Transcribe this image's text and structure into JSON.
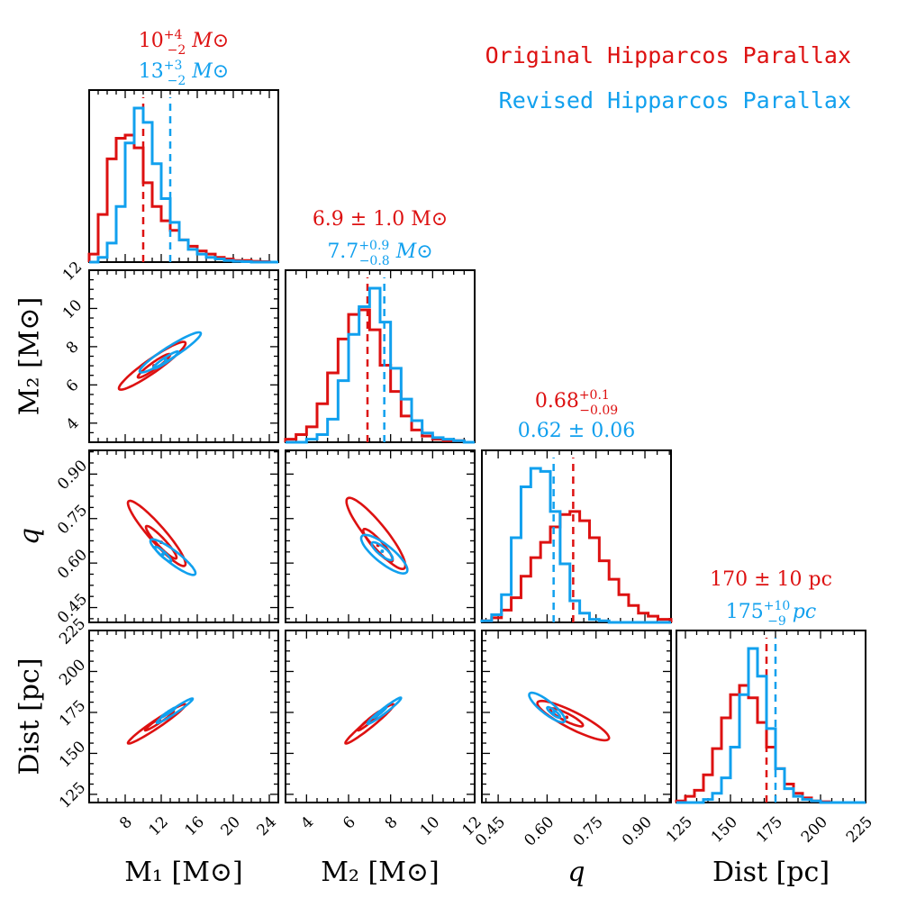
{
  "colors": {
    "original": "#dd1111",
    "revised": "#11a0ee",
    "axis": "#000000"
  },
  "legend": {
    "original": "Original Hipparcos Parallax",
    "revised": "Revised Hipparcos Parallax"
  },
  "annotations": {
    "m1_orig": {
      "base": "10",
      "sup": "+4",
      "sub": "−2",
      "unit": "M⊙"
    },
    "m1_rev": {
      "base": "13",
      "sup": "+3",
      "sub": "−2",
      "unit": "M⊙"
    },
    "m2_orig": {
      "text": "6.9 ± 1.0 M⊙"
    },
    "m2_rev": {
      "base": "7.7",
      "sup": "+0.9",
      "sub": "−0.8",
      "unit": "M⊙"
    },
    "q_orig": {
      "base": "0.68",
      "sup": "+0.1",
      "sub": "−0.09",
      "unit": ""
    },
    "q_rev": {
      "text": "0.62 ± 0.06"
    },
    "d_orig": {
      "text": "170 ± 10 pc"
    },
    "d_rev": {
      "base": "175",
      "sup": "+10",
      "sub": "−9",
      "unit": "pc"
    }
  },
  "chart_data": {
    "type": "corner",
    "parameters": [
      {
        "key": "m1",
        "label": "M₁ [M⊙]",
        "range": [
          4,
          25
        ],
        "ticks": [
          8,
          12,
          16,
          20,
          24
        ],
        "tick_labels": [
          "8",
          "12",
          "16",
          "20",
          "24"
        ]
      },
      {
        "key": "m2",
        "label": "M₂ [M⊙]",
        "range": [
          3,
          12
        ],
        "ticks": [
          4,
          6,
          8,
          10,
          12
        ],
        "tick_labels": [
          "4",
          "6",
          "8",
          "10",
          "12"
        ]
      },
      {
        "key": "q",
        "label": "q",
        "range": [
          0.4,
          0.98
        ],
        "ticks": [
          0.45,
          0.6,
          0.75,
          0.9
        ],
        "tick_labels": [
          "0.45",
          "0.60",
          "0.75",
          "0.90"
        ]
      },
      {
        "key": "dist",
        "label": "Dist [pc]",
        "range": [
          120,
          225
        ],
        "ticks": [
          125,
          150,
          175,
          200,
          225
        ],
        "tick_labels": [
          "125",
          "150",
          "175",
          "200",
          "225"
        ]
      }
    ],
    "histograms": {
      "m1": {
        "bins": [
          4,
          5,
          6,
          7,
          8,
          9,
          10,
          11,
          12,
          13,
          14,
          15,
          16,
          17,
          18,
          19,
          20,
          21,
          22,
          23,
          24,
          25
        ],
        "original": [
          0.05,
          0.3,
          0.65,
          0.78,
          0.8,
          0.72,
          0.5,
          0.35,
          0.26,
          0.2,
          0.14,
          0.1,
          0.07,
          0.05,
          0.03,
          0.02,
          0.01,
          0.01,
          0.005,
          0.003,
          0.0
        ],
        "revised": [
          0.0,
          0.03,
          0.12,
          0.35,
          0.75,
          0.97,
          0.88,
          0.62,
          0.4,
          0.25,
          0.14,
          0.08,
          0.05,
          0.03,
          0.02,
          0.01,
          0.005,
          0.003,
          0.0,
          0.0,
          0.0
        ],
        "median_original": 10,
        "median_revised": 13
      },
      "m2": {
        "bins": [
          3,
          3.5,
          4,
          4.5,
          5,
          5.5,
          6,
          6.5,
          7,
          7.5,
          8,
          8.5,
          9,
          9.5,
          10,
          10.5,
          11,
          11.5,
          12
        ],
        "original": [
          0.02,
          0.05,
          0.1,
          0.25,
          0.45,
          0.67,
          0.83,
          0.86,
          0.73,
          0.5,
          0.33,
          0.17,
          0.08,
          0.04,
          0.02,
          0.01,
          0.01,
          0.0
        ],
        "revised": [
          0.0,
          0.0,
          0.02,
          0.05,
          0.15,
          0.4,
          0.7,
          0.88,
          1.0,
          0.78,
          0.48,
          0.28,
          0.14,
          0.06,
          0.03,
          0.02,
          0.01,
          0.0
        ],
        "median_original": 6.9,
        "median_revised": 7.7
      },
      "q": {
        "bins": [
          0.4,
          0.43,
          0.46,
          0.49,
          0.52,
          0.55,
          0.58,
          0.61,
          0.64,
          0.67,
          0.7,
          0.73,
          0.76,
          0.79,
          0.82,
          0.85,
          0.88,
          0.91,
          0.94,
          0.98
        ],
        "original": [
          0.01,
          0.03,
          0.08,
          0.16,
          0.3,
          0.42,
          0.52,
          0.62,
          0.7,
          0.72,
          0.66,
          0.55,
          0.4,
          0.28,
          0.18,
          0.11,
          0.06,
          0.04,
          0.02
        ],
        "revised": [
          0.01,
          0.05,
          0.18,
          0.55,
          0.88,
          1.0,
          0.98,
          0.72,
          0.38,
          0.14,
          0.06,
          0.02,
          0.01,
          0.0,
          0.0,
          0.0,
          0.0,
          0.0,
          0.0
        ],
        "median_original": 0.68,
        "median_revised": 0.62
      },
      "dist": {
        "bins": [
          120,
          125,
          130,
          135,
          140,
          145,
          150,
          155,
          160,
          165,
          170,
          175,
          180,
          185,
          190,
          195,
          200,
          205,
          210,
          215,
          220,
          225
        ],
        "original": [
          0.01,
          0.04,
          0.08,
          0.18,
          0.35,
          0.55,
          0.7,
          0.76,
          0.68,
          0.52,
          0.36,
          0.22,
          0.12,
          0.06,
          0.03,
          0.01,
          0.005,
          0.0,
          0.0,
          0.0,
          0.0
        ],
        "revised": [
          0.0,
          0.0,
          0.0,
          0.02,
          0.06,
          0.16,
          0.36,
          0.7,
          1.0,
          0.82,
          0.48,
          0.22,
          0.09,
          0.04,
          0.02,
          0.01,
          0.0,
          0.0,
          0.0,
          0.0,
          0.0
        ],
        "median_original": 170,
        "median_revised": 175
      }
    },
    "contours": [
      {
        "x": "m1",
        "y": "m2",
        "original": [
          {
            "cx": 11,
            "cy": 7.0,
            "sx": 3.7,
            "sy": 1.25,
            "rho": 0.94
          },
          {
            "cx": 11.2,
            "cy": 7.0,
            "sx": 1.8,
            "sy": 0.62,
            "rho": 0.94
          }
        ],
        "revised": [
          {
            "cx": 13,
            "cy": 7.7,
            "sx": 3.4,
            "sy": 1.05,
            "rho": 0.94
          },
          {
            "cx": 12.5,
            "cy": 7.3,
            "sx": 1.4,
            "sy": 0.45,
            "rho": 0.94
          }
        ]
      },
      {
        "x": "m1",
        "y": "q",
        "original": [
          {
            "cx": 11.5,
            "cy": 0.7,
            "sx": 3.2,
            "sy": 0.11,
            "rho": -0.93
          },
          {
            "cx": 12,
            "cy": 0.67,
            "sx": 1.7,
            "sy": 0.055,
            "rho": -0.93
          }
        ],
        "revised": [
          {
            "cx": 13.3,
            "cy": 0.62,
            "sx": 2.5,
            "sy": 0.06,
            "rho": -0.9
          },
          {
            "cx": 12.2,
            "cy": 0.63,
            "sx": 0.9,
            "sy": 0.025,
            "rho": -0.9
          }
        ]
      },
      {
        "x": "m2",
        "y": "q",
        "original": [
          {
            "cx": 7.3,
            "cy": 0.7,
            "sx": 1.4,
            "sy": 0.12,
            "rho": -0.9
          },
          {
            "cx": 7.4,
            "cy": 0.66,
            "sx": 0.7,
            "sy": 0.055,
            "rho": -0.9
          }
        ],
        "revised": [
          {
            "cx": 7.7,
            "cy": 0.63,
            "sx": 1.1,
            "sy": 0.065,
            "rho": -0.82
          },
          {
            "cx": 7.6,
            "cy": 0.64,
            "sx": 0.5,
            "sy": 0.03,
            "rho": -0.82
          }
        ]
      },
      {
        "x": "m1",
        "y": "dist",
        "original": [
          {
            "cx": 11.5,
            "cy": 168,
            "sx": 3.2,
            "sy": 12,
            "rho": 0.97
          },
          {
            "cx": 11.8,
            "cy": 170,
            "sx": 1.6,
            "sy": 6,
            "rho": 0.97
          }
        ],
        "revised": [
          {
            "cx": 13.5,
            "cy": 176,
            "sx": 2.0,
            "sy": 7.5,
            "rho": 0.97
          },
          {
            "cx": 12.8,
            "cy": 175,
            "sx": 0.8,
            "sy": 3,
            "rho": 0.97
          }
        ]
      },
      {
        "x": "m2",
        "y": "dist",
        "original": [
          {
            "cx": 7.0,
            "cy": 168,
            "sx": 1.15,
            "sy": 12,
            "rho": 0.97
          },
          {
            "cx": 7.0,
            "cy": 170,
            "sx": 0.55,
            "sy": 6,
            "rho": 0.97
          }
        ],
        "revised": [
          {
            "cx": 7.7,
            "cy": 176,
            "sx": 0.8,
            "sy": 8,
            "rho": 0.97
          },
          {
            "cx": 7.5,
            "cy": 175,
            "sx": 0.3,
            "sy": 3.2,
            "rho": 0.97
          }
        ]
      },
      {
        "x": "q",
        "y": "dist",
        "original": [
          {
            "cx": 0.68,
            "cy": 170,
            "sx": 0.11,
            "sy": 12,
            "rho": -0.88
          },
          {
            "cx": 0.66,
            "cy": 172,
            "sx": 0.05,
            "sy": 5.5,
            "rho": -0.88
          }
        ],
        "revised": [
          {
            "cx": 0.6,
            "cy": 178,
            "sx": 0.055,
            "sy": 9,
            "rho": -0.85
          },
          {
            "cx": 0.62,
            "cy": 175,
            "sx": 0.02,
            "sy": 3.2,
            "rho": -0.85
          }
        ]
      }
    ]
  }
}
